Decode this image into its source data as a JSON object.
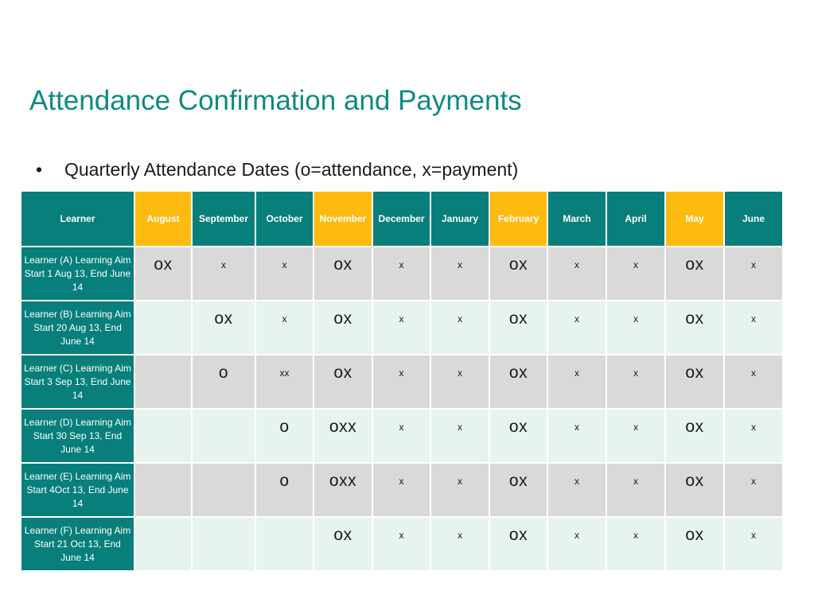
{
  "title": "Attendance Confirmation and Payments",
  "bullet": "Quarterly Attendance Dates (o=attendance, x=payment)",
  "table": {
    "learner_header": "Learner",
    "months": [
      {
        "label": "August",
        "quarter": true
      },
      {
        "label": "September",
        "quarter": false
      },
      {
        "label": "October",
        "quarter": false
      },
      {
        "label": "November",
        "quarter": true
      },
      {
        "label": "December",
        "quarter": false
      },
      {
        "label": "January",
        "quarter": false
      },
      {
        "label": "February",
        "quarter": true
      },
      {
        "label": "March",
        "quarter": false
      },
      {
        "label": "April",
        "quarter": false
      },
      {
        "label": "May",
        "quarter": true
      },
      {
        "label": "June",
        "quarter": false
      }
    ],
    "rows": [
      {
        "learner": "Learner (A) Learning Aim Start 1 Aug 13, End June 14",
        "cells": [
          "ox",
          "x",
          "x",
          "ox",
          "x",
          "x",
          "ox",
          "x",
          "x",
          "ox",
          "x"
        ]
      },
      {
        "learner": "Learner (B) Learning Aim Start 20 Aug 13, End June 14",
        "cells": [
          "",
          "ox",
          "x",
          "ox",
          "x",
          "x",
          "ox",
          "x",
          "x",
          "ox",
          "x"
        ]
      },
      {
        "learner": "Learner (C) Learning Aim Start 3 Sep 13, End June 14",
        "cells": [
          "",
          "o",
          "xx",
          "ox",
          "x",
          "x",
          "ox",
          "x",
          "x",
          "ox",
          "x"
        ]
      },
      {
        "learner": "Learner (D) Learning Aim Start 30 Sep 13, End June 14",
        "cells": [
          "",
          "",
          "o",
          "oxx",
          "x",
          "x",
          "ox",
          "x",
          "x",
          "ox",
          "x"
        ]
      },
      {
        "learner": "Learner (E) Learning Aim Start 4Oct 13, End June 14",
        "cells": [
          "",
          "",
          "o",
          "oxx",
          "x",
          "x",
          "ox",
          "x",
          "x",
          "ox",
          "x"
        ]
      },
      {
        "learner": "Learner (F) Learning Aim Start 21 Oct 13, End June 14",
        "cells": [
          "",
          "",
          "",
          "ox",
          "x",
          "x",
          "ox",
          "x",
          "x",
          "ox",
          "x"
        ]
      }
    ]
  },
  "colors": {
    "teal": "#087f7a",
    "title_teal": "#0f8a82",
    "quarter_yellow": "#fdbb0f",
    "row_grey": "#d9d9d9",
    "row_mint": "#e6f3ef"
  }
}
